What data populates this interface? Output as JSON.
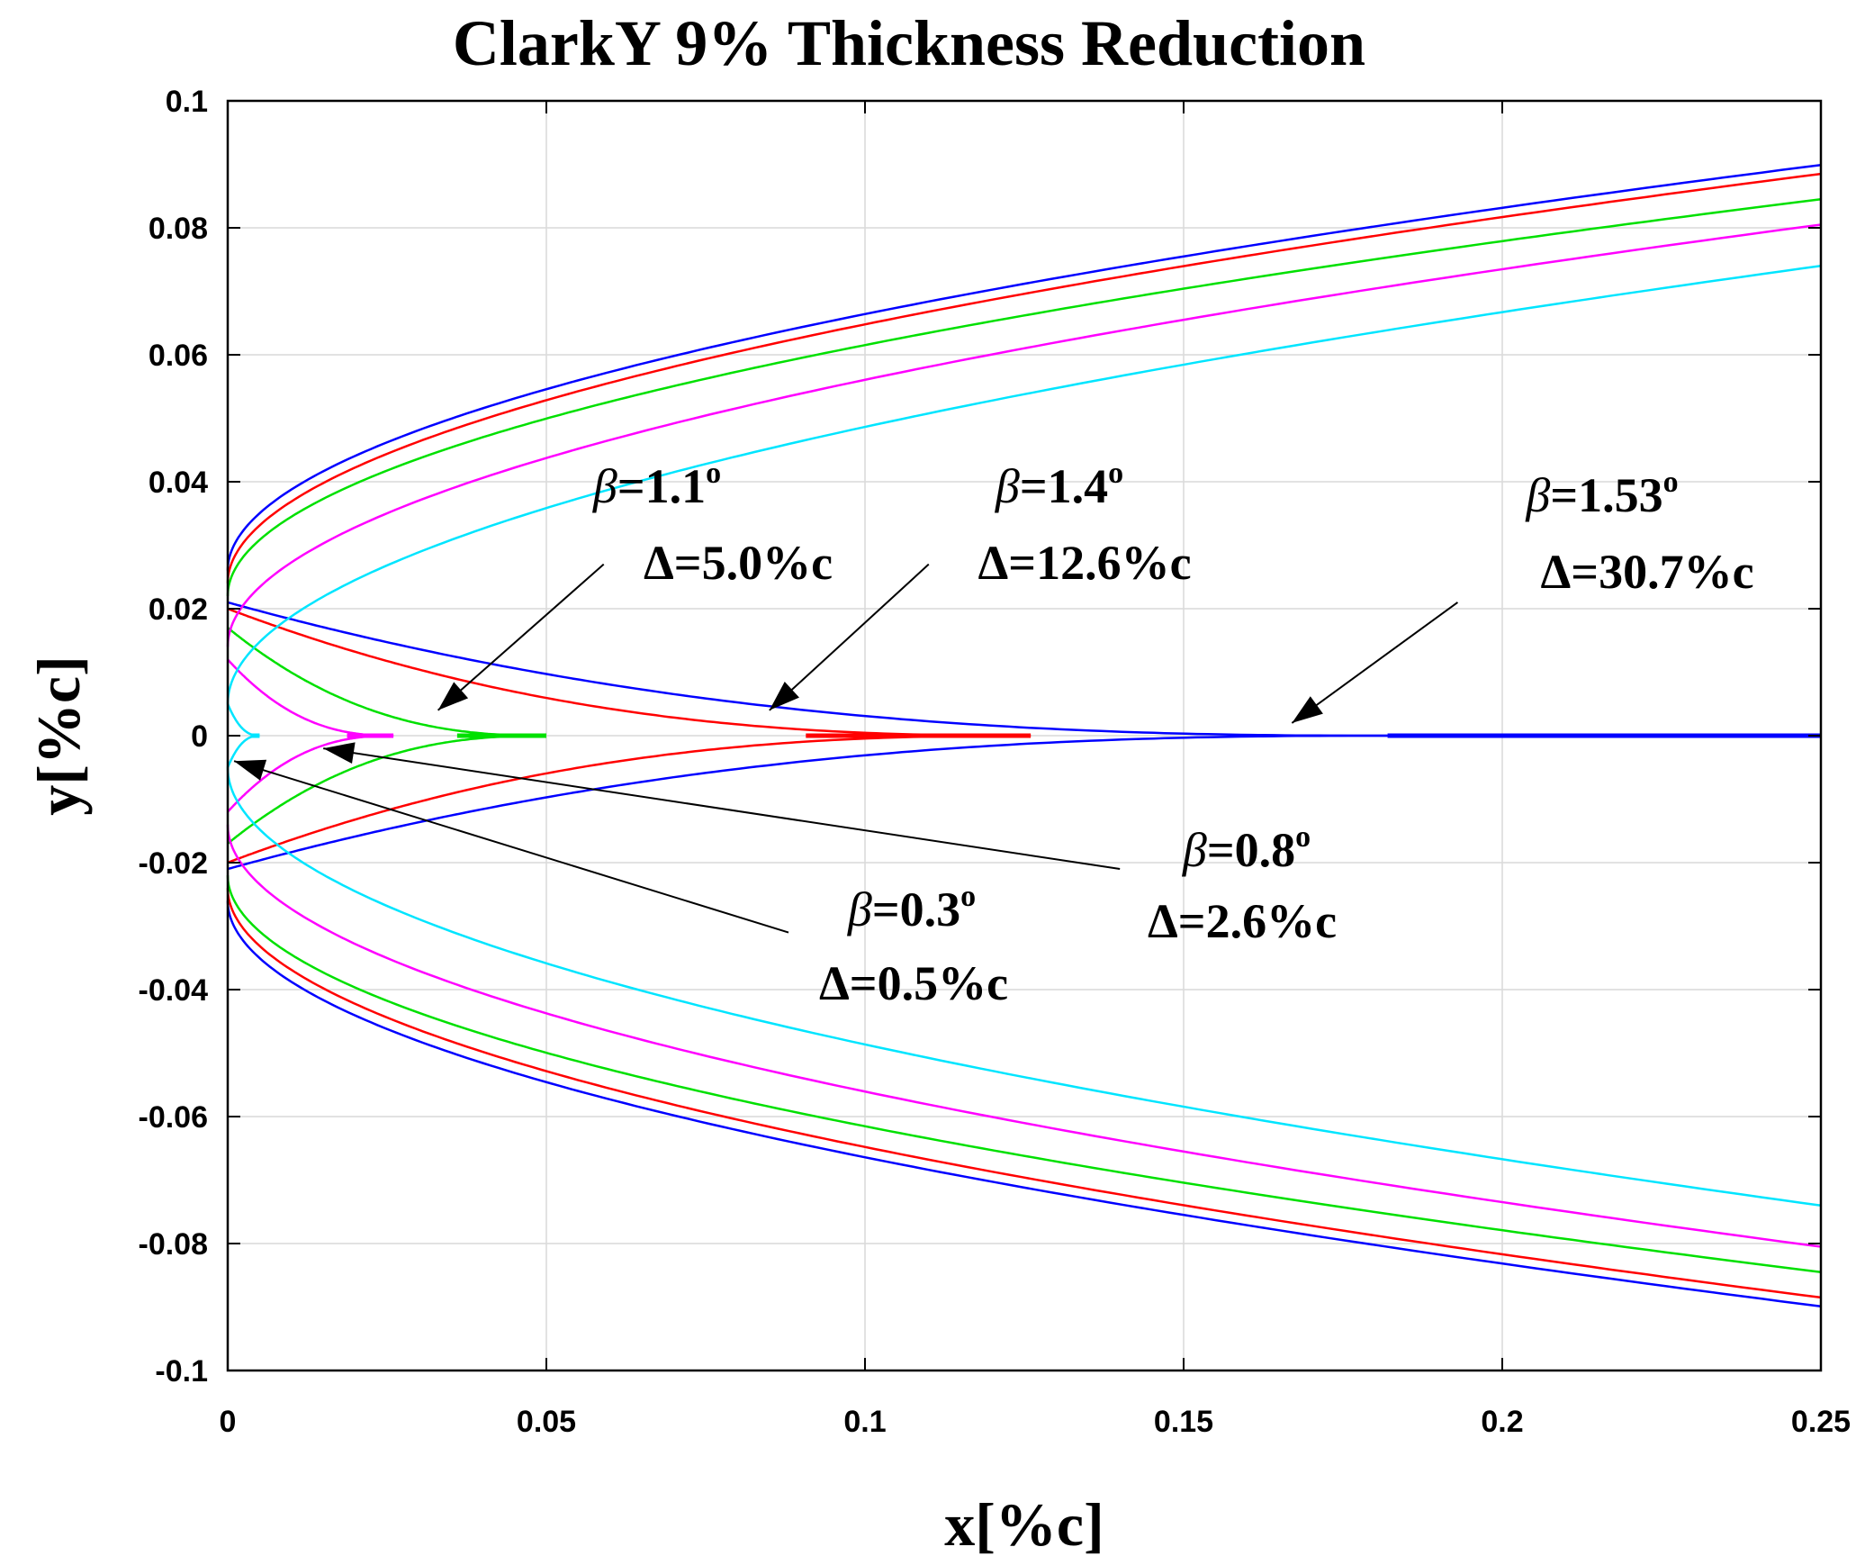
{
  "chart_data": {
    "type": "line",
    "title": "ClarkY 9% Thickness Reduction",
    "xlabel": "x[%c]",
    "ylabel": "y[%c]",
    "xlim": [
      0,
      0.25
    ],
    "ylim": [
      -0.1,
      0.1
    ],
    "grid": true,
    "x_ticks": [
      0,
      0.05,
      0.1,
      0.15,
      0.2,
      0.25
    ],
    "x_tick_labels": [
      "0",
      "0.05",
      "0.1",
      "0.15",
      "0.2",
      "0.25"
    ],
    "y_ticks": [
      0.1,
      0.08,
      0.06,
      0.04,
      0.02,
      0,
      -0.02,
      -0.04,
      -0.06,
      -0.08,
      -0.1
    ],
    "y_tick_labels": [
      "0.1",
      "0.08",
      "0.06",
      "0.04",
      "0.02",
      "0",
      "-0.02",
      "-0.04",
      "-0.06",
      "-0.08",
      "-0.1"
    ],
    "series": [
      {
        "name": "beta-1.53",
        "color": "#0000ff",
        "y_le": 0.026,
        "y_end": 0.0899,
        "tip_x": 0.25,
        "inner_y0": 0.021,
        "inner_tip": 0.182
      },
      {
        "name": "beta-1.4",
        "color": "#ff0000",
        "y_le": 0.024,
        "y_end": 0.0885,
        "tip_x": 0.126,
        "inner_y0": 0.02,
        "inner_tip": 0.126
      },
      {
        "name": "beta-1.1",
        "color": "#00e000",
        "y_le": 0.022,
        "y_end": 0.0845,
        "tip_x": 0.05,
        "inner_y0": 0.017,
        "inner_tip": 0.05
      },
      {
        "name": "beta-0.8",
        "color": "#ff00ff",
        "y_le": 0.014,
        "y_end": 0.0805,
        "tip_x": 0.026,
        "inner_y0": 0.012,
        "inner_tip": 0.026
      },
      {
        "name": "beta-0.3",
        "color": "#00e5ff",
        "y_le": 0.005,
        "y_end": 0.074,
        "tip_x": 0.005,
        "inner_y0": 0.005,
        "inner_tip": 0.005
      }
    ],
    "annotations": [
      {
        "beta_symbol": "β",
        "beta_value": "=1.1",
        "superscript": "o",
        "delta_text": "Δ=5.0%c",
        "arrow_from": [
          0.059,
          0.027
        ],
        "arrow_to": [
          0.033,
          0.004
        ]
      },
      {
        "beta_symbol": "β",
        "beta_value": "=1.4",
        "superscript": "o",
        "delta_text": "Δ=12.6%c",
        "arrow_from": [
          0.11,
          0.027
        ],
        "arrow_to": [
          0.085,
          0.004
        ]
      },
      {
        "beta_symbol": "β",
        "beta_value": "=1.53",
        "superscript": "o",
        "delta_text": "Δ=30.7%c",
        "arrow_from": [
          0.193,
          0.021
        ],
        "arrow_to": [
          0.167,
          0.002
        ]
      },
      {
        "beta_symbol": "β",
        "beta_value": "=0.8",
        "superscript": "o",
        "delta_text": "Δ=2.6%c",
        "arrow_from": [
          0.14,
          -0.021
        ],
        "arrow_to": [
          0.015,
          -0.002
        ]
      },
      {
        "beta_symbol": "β",
        "beta_value": "=0.3",
        "superscript": "o",
        "delta_text": "Δ=0.5%c",
        "arrow_from": [
          0.088,
          -0.031
        ],
        "arrow_to": [
          0.001,
          -0.004
        ]
      }
    ]
  }
}
